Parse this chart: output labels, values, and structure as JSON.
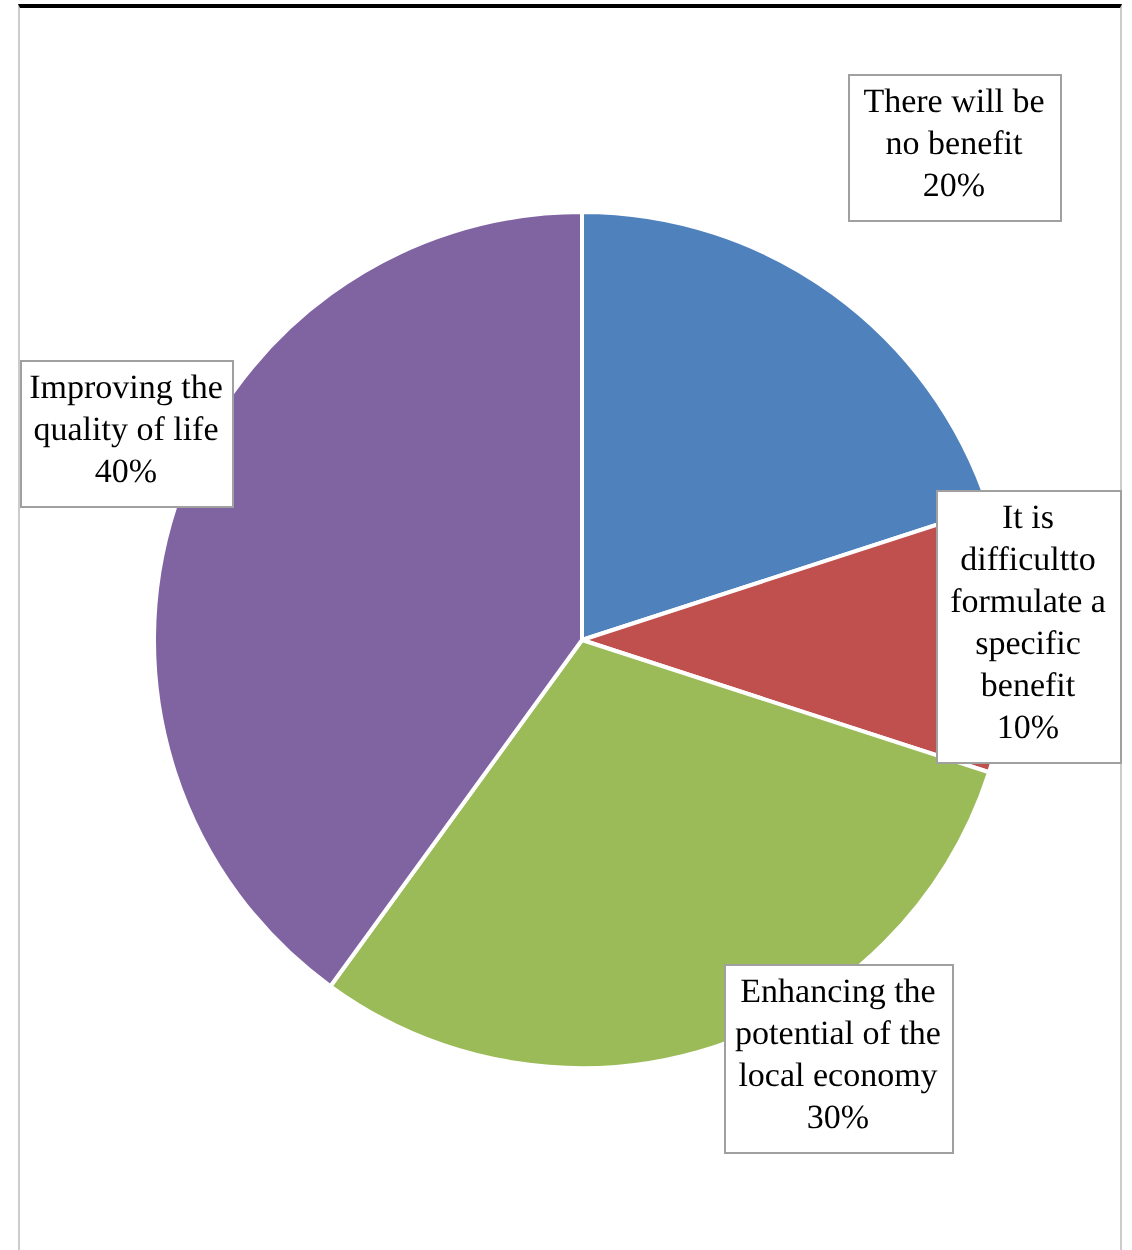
{
  "chart_data": {
    "type": "pie",
    "categories": [
      "There will be no benefit",
      "It is difficultto formulate a specific benefit",
      "Enhancing the potential of the local economy",
      "Improving the quality of life"
    ],
    "values": [
      20,
      10,
      30,
      40
    ],
    "colors": [
      "#4f81bd",
      "#c0504d",
      "#9bbb59",
      "#8064a2"
    ],
    "value_labels": [
      "20%",
      "10%",
      "30%",
      "40%"
    ],
    "legend": false
  }
}
